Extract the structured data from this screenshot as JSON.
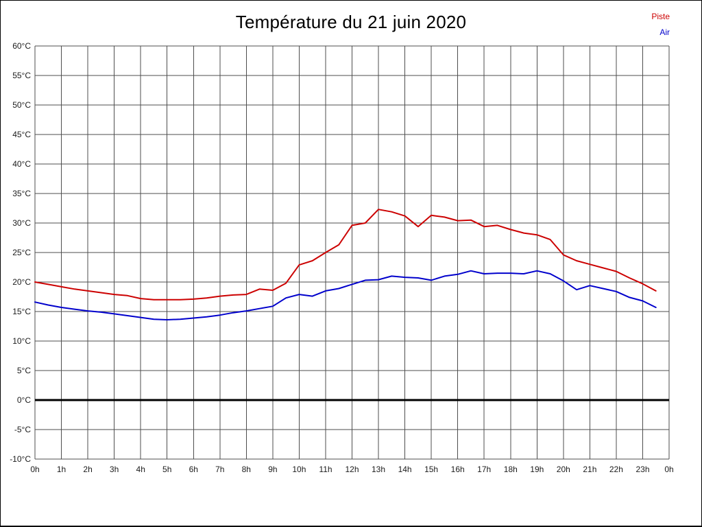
{
  "page": {
    "background": "#ffffff"
  },
  "chart_data": {
    "type": "line",
    "title": "Température du 21 juin 2020",
    "xlabel": "",
    "ylabel": "",
    "x_range": [
      0,
      24
    ],
    "x_step": 0.5,
    "ylim": [
      -10,
      60
    ],
    "y_step": 5,
    "grid": true,
    "grid_color": "#4d4d4d",
    "axis_text_color": "#1a1a1a",
    "zero_line": {
      "value": 0,
      "color": "#000000",
      "width": 3
    },
    "legend_position": "top-right",
    "x_tick_labels": [
      "0h",
      "1h",
      "2h",
      "3h",
      "4h",
      "5h",
      "6h",
      "7h",
      "8h",
      "9h",
      "10h",
      "11h",
      "12h",
      "13h",
      "14h",
      "15h",
      "16h",
      "17h",
      "18h",
      "19h",
      "20h",
      "21h",
      "22h",
      "23h",
      "0h"
    ],
    "y_tick_labels": [
      "60°C",
      "55°C",
      "50°C",
      "45°C",
      "40°C",
      "35°C",
      "30°C",
      "25°C",
      "20°C",
      "15°C",
      "10°C",
      "5°C",
      "0°C",
      "-5°C",
      "-10°C"
    ],
    "series": [
      {
        "name": "Piste",
        "color": "#cc0000",
        "values": [
          20.0,
          19.6,
          19.2,
          18.8,
          18.5,
          18.2,
          17.9,
          17.7,
          17.2,
          17.0,
          17.0,
          17.0,
          17.1,
          17.3,
          17.6,
          17.8,
          17.9,
          18.8,
          18.6,
          19.8,
          22.9,
          23.6,
          25.0,
          26.3,
          29.6,
          30.0,
          32.3,
          31.9,
          31.2,
          29.4,
          31.3,
          31.0,
          30.4,
          30.5,
          29.4,
          29.6,
          28.9,
          28.3,
          28.0,
          27.2,
          24.6,
          23.6,
          23.0,
          22.4,
          21.8,
          20.7,
          19.7,
          18.5
        ]
      },
      {
        "name": "Air",
        "color": "#0000cc",
        "values": [
          16.6,
          16.1,
          15.7,
          15.4,
          15.1,
          14.9,
          14.6,
          14.3,
          14.0,
          13.7,
          13.6,
          13.7,
          13.9,
          14.1,
          14.4,
          14.8,
          15.1,
          15.5,
          15.9,
          17.3,
          17.9,
          17.6,
          18.5,
          18.9,
          19.6,
          20.3,
          20.4,
          21.0,
          20.8,
          20.7,
          20.3,
          21.0,
          21.3,
          21.9,
          21.4,
          21.5,
          21.5,
          21.4,
          21.9,
          21.4,
          20.2,
          18.7,
          19.4,
          18.9,
          18.4,
          17.4,
          16.8,
          15.7
        ]
      }
    ]
  }
}
